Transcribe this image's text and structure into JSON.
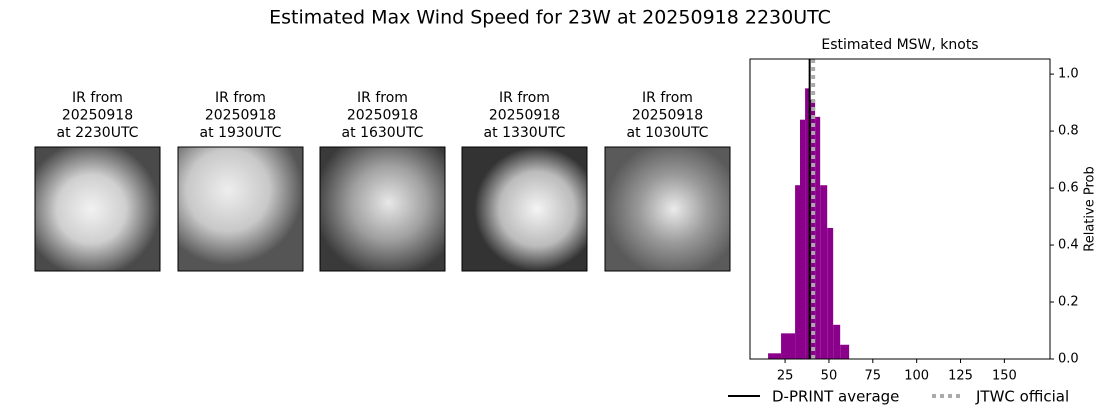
{
  "title": "Estimated Max Wind Speed for 23W at 20250918 2230UTC",
  "panels": [
    {
      "lines": [
        "IR from",
        "20250918",
        "at 2230UTC"
      ]
    },
    {
      "lines": [
        "IR from",
        "20250918",
        "at 1930UTC"
      ]
    },
    {
      "lines": [
        "IR from",
        "20250918",
        "at 1630UTC"
      ]
    },
    {
      "lines": [
        "IR from",
        "20250918",
        "at 1330UTC"
      ]
    },
    {
      "lines": [
        "IR from",
        "20250918",
        "at 1030UTC"
      ]
    }
  ],
  "chart_data": {
    "type": "histogram",
    "title": "Estimated MSW, knots",
    "y_label": "Relative Prob",
    "bins": [
      15.3,
      22.7,
      30.7,
      33.5,
      36.4,
      39.2,
      42.1,
      45.0,
      49.0,
      52.4,
      56.4,
      61.5
    ],
    "values": [
      0.02,
      0.09,
      0.61,
      0.84,
      0.95,
      0.91,
      0.85,
      0.61,
      0.46,
      0.12,
      0.05
    ],
    "color": "#8b008b",
    "lines": [
      {
        "name": "D-PRINT average",
        "value": 39,
        "color": "#000000",
        "dashed": false
      },
      {
        "name": "JTWC official",
        "value": 41,
        "color": "#aaaaaa",
        "dashed": true
      }
    ],
    "xlim": [
      5,
      176
    ],
    "xticks": [
      25,
      50,
      75,
      100,
      125,
      150
    ],
    "ylim": [
      0,
      1.053
    ],
    "yticks": [
      {
        "value": 0,
        "label": "0.0"
      },
      0.2,
      0.4,
      0.6,
      0.8,
      {
        "value": 1,
        "label": "1.0"
      }
    ],
    "y_axis_side": "right"
  }
}
